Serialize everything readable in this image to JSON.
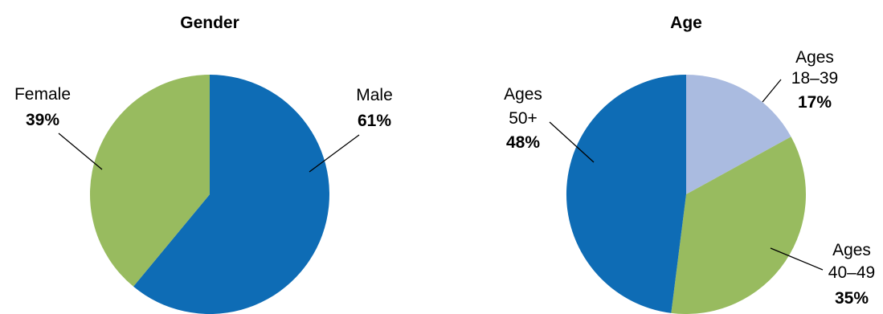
{
  "chart_data": [
    {
      "type": "pie",
      "title": "Gender",
      "slices": [
        {
          "label_lines": [
            "Male"
          ],
          "value_label": "61%",
          "value": 61,
          "color": "#0e6cb5"
        },
        {
          "label_lines": [
            "Female"
          ],
          "value_label": "39%",
          "value": 39,
          "color": "#98bb5f"
        }
      ]
    },
    {
      "type": "pie",
      "title": "Age",
      "slices": [
        {
          "label_lines": [
            "Ages",
            "18–39"
          ],
          "value_label": "17%",
          "value": 17,
          "color": "#aabbe0"
        },
        {
          "label_lines": [
            "Ages",
            "40–49"
          ],
          "value_label": "35%",
          "value": 35,
          "color": "#98bb5f"
        },
        {
          "label_lines": [
            "Ages",
            "50+"
          ],
          "value_label": "48%",
          "value": 48,
          "color": "#0e6cb5"
        }
      ]
    }
  ]
}
